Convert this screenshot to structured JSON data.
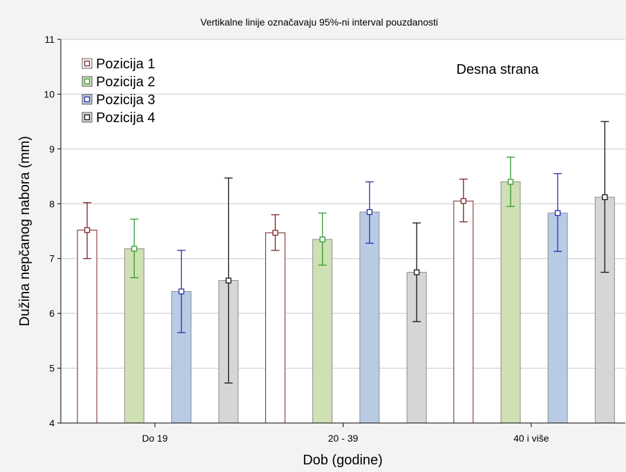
{
  "chart_data": {
    "type": "bar",
    "title": "Vertikalne linije označavaju 95%-ni interval pouzdanosti",
    "annotation": "Desna strana",
    "xlabel": "Dob (godine)",
    "ylabel": "Dužina nepčanog nabora (mm)",
    "ylim": [
      4,
      11
    ],
    "yticks": [
      "4",
      "5",
      "6",
      "7",
      "8",
      "9",
      "10",
      "11"
    ],
    "grid": true,
    "legend_position": "top-left",
    "categories": [
      "Do 19",
      "20 - 39",
      "40 i više"
    ],
    "series": [
      {
        "name": "Pozicija 1",
        "fill": "#ffffff",
        "stroke": "#7a1f1f",
        "values": [
          7.52,
          7.47,
          8.05
        ],
        "ci_low": [
          7.0,
          7.15,
          7.67
        ],
        "ci_high": [
          8.02,
          7.8,
          8.45
        ]
      },
      {
        "name": "Pozicija 2",
        "fill": "#cfe0b4",
        "stroke": "#2e9a2e",
        "values": [
          7.18,
          7.35,
          8.4
        ],
        "ci_low": [
          6.65,
          6.88,
          7.95
        ],
        "ci_high": [
          7.72,
          7.83,
          8.85
        ]
      },
      {
        "name": "Pozicija 3",
        "fill": "#b9cbe4",
        "stroke": "#2a2aa8",
        "values": [
          6.4,
          7.85,
          7.83
        ],
        "ci_low": [
          5.65,
          7.28,
          7.13
        ],
        "ci_high": [
          7.15,
          8.4,
          8.55
        ]
      },
      {
        "name": "Pozicija 4",
        "fill": "#d6d6d6",
        "stroke": "#111111",
        "values": [
          6.6,
          6.75,
          8.12
        ],
        "ci_low": [
          4.73,
          5.85,
          6.75
        ],
        "ci_high": [
          8.47,
          7.65,
          9.5
        ]
      }
    ]
  }
}
